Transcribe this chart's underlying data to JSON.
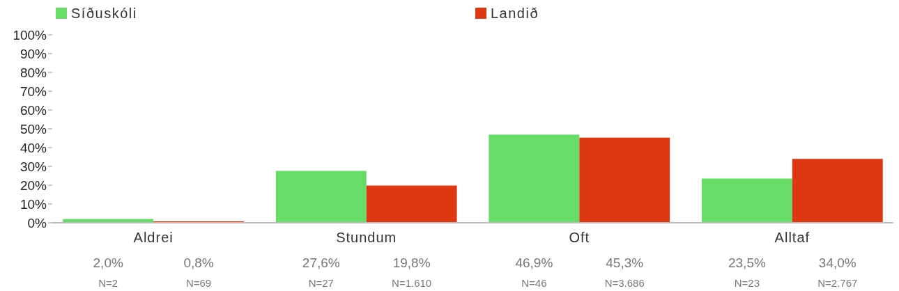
{
  "chart_data": {
    "type": "bar",
    "categories": [
      "Aldrei",
      "Stundum",
      "Oft",
      "Alltaf"
    ],
    "series": [
      {
        "name": "Síðuskóli",
        "color": "#66dd66",
        "values": [
          2.0,
          27.6,
          46.9,
          23.5
        ],
        "value_labels": [
          "2,0%",
          "27,6%",
          "46,9%",
          "23,5%"
        ]
      },
      {
        "name": "Landið",
        "color": "#dd3811",
        "values": [
          0.8,
          19.8,
          45.3,
          34.0
        ],
        "value_labels": [
          "0,8%",
          "19,8%",
          "45,3%",
          "34,0%"
        ]
      }
    ],
    "ylim": [
      0,
      100
    ],
    "yticks": [
      {
        "value": 0,
        "label": "0%"
      },
      {
        "value": 10,
        "label": "10%"
      },
      {
        "value": 20,
        "label": "20%"
      },
      {
        "value": 30,
        "label": "30%"
      },
      {
        "value": 40,
        "label": "40%"
      },
      {
        "value": 50,
        "label": "50%"
      },
      {
        "value": 60,
        "label": "60%"
      },
      {
        "value": 70,
        "label": "70%"
      },
      {
        "value": 80,
        "label": "80%"
      },
      {
        "value": 90,
        "label": "90%"
      },
      {
        "value": 100,
        "label": "100%"
      }
    ],
    "annotations": [
      "N=2",
      "N=69",
      "N=27",
      "N=1.610",
      "N=46",
      "N=3.686",
      "N=23",
      "N=2.767"
    ],
    "legend": "top",
    "grid": false
  }
}
